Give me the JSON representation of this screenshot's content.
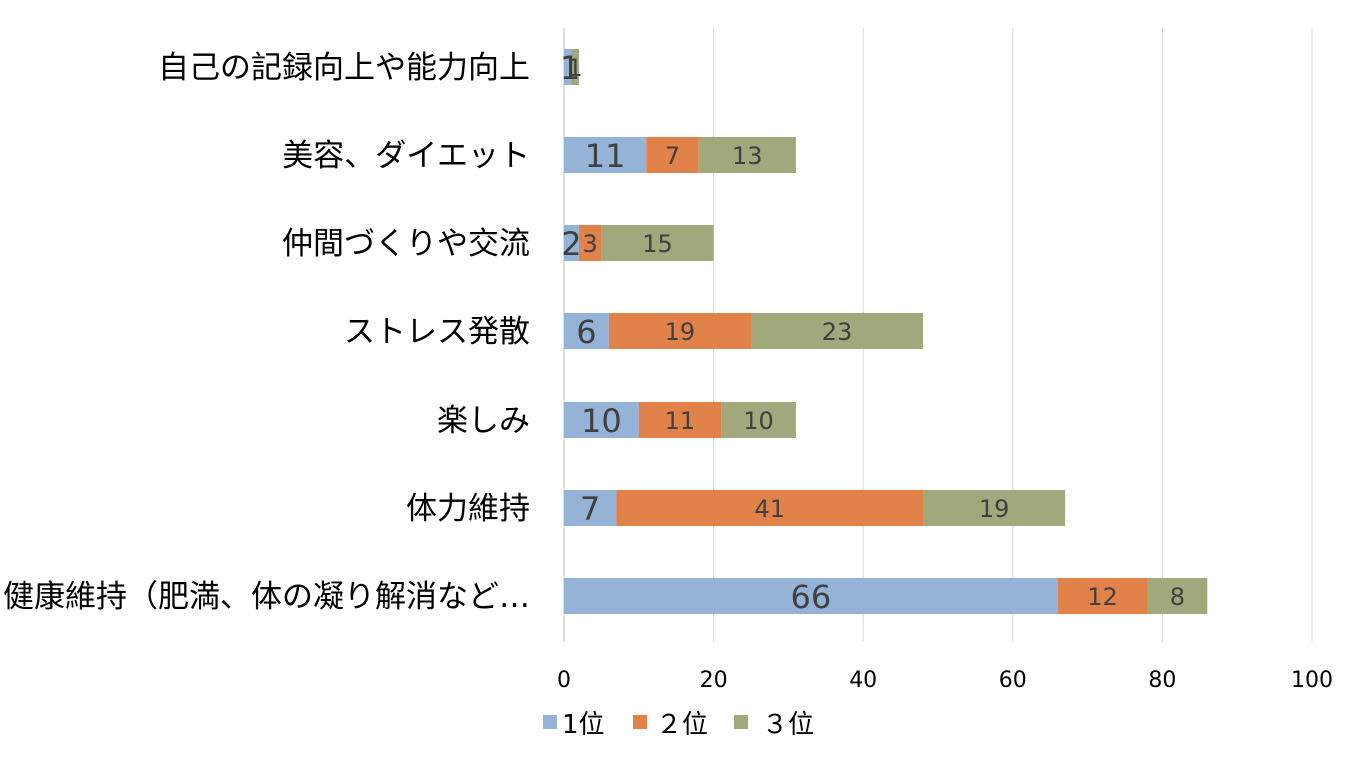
{
  "chart_data": {
    "type": "bar",
    "orientation": "horizontal",
    "stacked": true,
    "title": "",
    "xlabel": "",
    "ylabel": "",
    "xlim": [
      0,
      100
    ],
    "x_ticks": [
      "0",
      "20",
      "40",
      "60",
      "80",
      "100"
    ],
    "x_tick_values": [
      0,
      20,
      40,
      60,
      80,
      100
    ],
    "grid": true,
    "legend_position": "bottom",
    "categories": [
      "自己の記録向上や能力向上",
      "美容、ダイエット",
      "仲間づくりや交流",
      "ストレス発散",
      "楽しみ",
      "体力維持",
      "健康維持（肥満、体の凝り解消など…"
    ],
    "series": [
      {
        "name": "1位",
        "color": "#95b3d7",
        "values": [
          1,
          11,
          2,
          6,
          10,
          7,
          66
        ],
        "labels": [
          "1",
          "11",
          "2",
          "6",
          "10",
          "7",
          "66"
        ]
      },
      {
        "name": "２位",
        "color": "#e0824a",
        "values": [
          0,
          7,
          3,
          19,
          11,
          41,
          12
        ],
        "labels": [
          "",
          "7",
          "3",
          "19",
          "11",
          "41",
          "12"
        ]
      },
      {
        "name": "３位",
        "color": "#a0a87c",
        "values": [
          1,
          13,
          15,
          23,
          10,
          19,
          8
        ],
        "labels": [
          "1",
          "13",
          "15",
          "23",
          "10",
          "19",
          "8"
        ]
      }
    ],
    "label_colors": {
      "first": "#404040",
      "other": "#404040"
    },
    "gridline_color": "#d9d9d9",
    "axis_color": "#bfbfbf",
    "text_color": "#000000",
    "tick_color": "#000000"
  }
}
